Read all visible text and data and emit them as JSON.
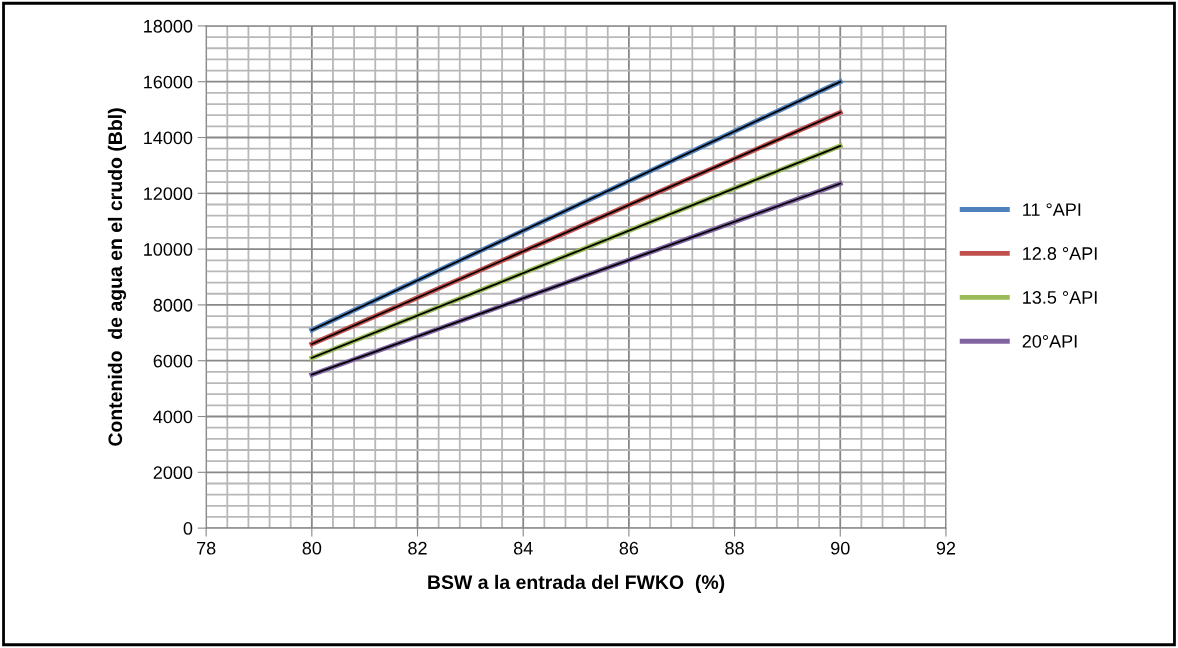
{
  "chart_data": {
    "type": "line",
    "xlabel": "BSW a la entrada del FWKO  (%)",
    "ylabel": "Contenido  de agua en el crudo (Bbl)",
    "x": [
      80,
      90
    ],
    "xlim": [
      78,
      92
    ],
    "xticks": [
      78,
      80,
      82,
      84,
      86,
      88,
      90,
      92
    ],
    "ylim": [
      0,
      18000
    ],
    "yticks": [
      0,
      2000,
      4000,
      6000,
      8000,
      10000,
      12000,
      14000,
      16000,
      18000
    ],
    "grid": true,
    "legend": "right",
    "marker": "none",
    "line_style": "solid",
    "series": [
      {
        "name": "11 °API",
        "color": "#4f81bd",
        "values": [
          7100,
          16000
        ]
      },
      {
        "name": "12.8 °API",
        "color": "#c0504d",
        "values": [
          6600,
          14900
        ]
      },
      {
        "name": "13.5 °API",
        "color": "#9bbb59",
        "values": [
          6100,
          13700
        ]
      },
      {
        "name": "20°API",
        "color": "#8064a2",
        "values": [
          5500,
          12350
        ]
      },
      {
        "color": "#000000",
        "values": [
          7100,
          16000
        ]
      },
      {
        "color": "#000000",
        "values": [
          6600,
          14900
        ]
      },
      {
        "color": "#000000",
        "values": [
          6100,
          13700
        ]
      },
      {
        "color": "#000000",
        "values": [
          5500,
          12350
        ]
      }
    ]
  }
}
